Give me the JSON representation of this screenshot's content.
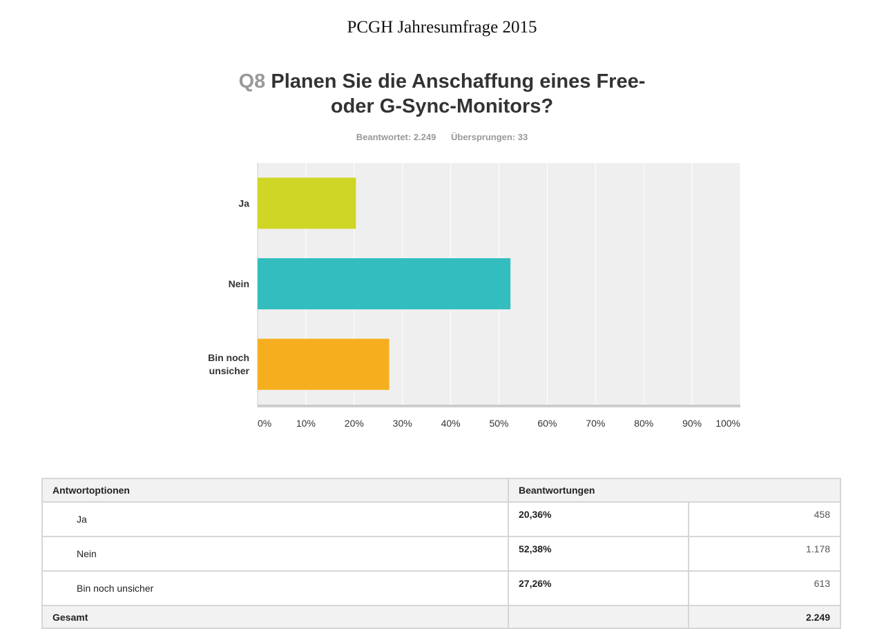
{
  "document_title": "PCGH Jahresumfrage 2015",
  "question": {
    "number": "Q8",
    "text_line1": "Planen Sie die Anschaffung eines Free-",
    "text_line2": "oder G-Sync-Monitors?"
  },
  "stats": {
    "answered": "Beantwortet: 2.249",
    "skipped": "Übersprungen: 33"
  },
  "chart_data": {
    "type": "bar",
    "orientation": "horizontal",
    "categories": [
      "Ja",
      "Nein",
      "Bin noch unsicher"
    ],
    "category_lines": [
      [
        "Ja"
      ],
      [
        "Nein"
      ],
      [
        "Bin noch",
        "unsicher"
      ]
    ],
    "values": [
      20.36,
      52.38,
      27.26
    ],
    "colors": [
      "#cfd625",
      "#33bdbe",
      "#f5ae1e"
    ],
    "xlim": [
      0,
      100
    ],
    "xticks": [
      "0%",
      "10%",
      "20%",
      "30%",
      "40%",
      "50%",
      "60%",
      "70%",
      "80%",
      "90%",
      "100%"
    ],
    "grid": true,
    "legend": "none"
  },
  "table": {
    "headers": [
      "Antwortoptionen",
      "Beantwortungen"
    ],
    "rows": [
      {
        "label": "Ja",
        "percent": "20,36%",
        "count": "458"
      },
      {
        "label": "Nein",
        "percent": "52,38%",
        "count": "1.178"
      },
      {
        "label": "Bin noch unsicher",
        "percent": "27,26%",
        "count": "613"
      }
    ],
    "total": {
      "label": "Gesamt",
      "count": "2.249"
    }
  }
}
